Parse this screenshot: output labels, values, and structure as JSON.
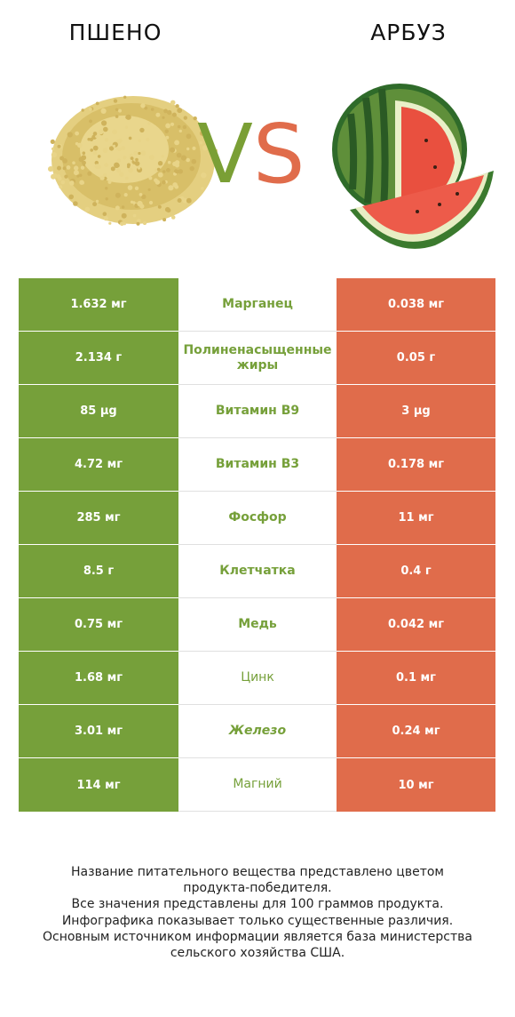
{
  "header": {
    "left_title": "ПШЕНО",
    "right_title": "АРБУЗ",
    "vs_v": "V",
    "vs_s": "S"
  },
  "colors": {
    "left_accent": "#76a03a",
    "right_accent": "#e06c4b"
  },
  "rows": [
    {
      "left": "1.632 мг",
      "nutrient": "Марганец",
      "right": "0.038 мг"
    },
    {
      "left": "2.134 г",
      "nutrient": "Полиненасыщенные жиры",
      "right": "0.05 г"
    },
    {
      "left": "85 µg",
      "nutrient": "Витамин B9",
      "right": "3 µg"
    },
    {
      "left": "4.72 мг",
      "nutrient": "Витамин B3",
      "right": "0.178 мг"
    },
    {
      "left": "285 мг",
      "nutrient": "Фосфор",
      "right": "11 мг"
    },
    {
      "left": "8.5 г",
      "nutrient": "Клетчатка",
      "right": "0.4 г"
    },
    {
      "left": "0.75 мг",
      "nutrient": "Медь",
      "right": "0.042 мг"
    },
    {
      "left": "1.68 мг",
      "nutrient": "Цинк",
      "right": "0.1 мг"
    },
    {
      "left": "3.01 мг",
      "nutrient": "Железо",
      "right": "0.24 мг"
    },
    {
      "left": "114 мг",
      "nutrient": "Магний",
      "right": "10 мг"
    }
  ],
  "footer": {
    "line1": "Название питательного вещества представлено цветом",
    "line2": "продукта-победителя.",
    "line3": "Все значения представлены для 100 граммов продукта.",
    "line4": "Инфографика показывает только существенные различия.",
    "line5": "Основным источником информации является база министерства",
    "line6": "сельского хозяйства США."
  }
}
